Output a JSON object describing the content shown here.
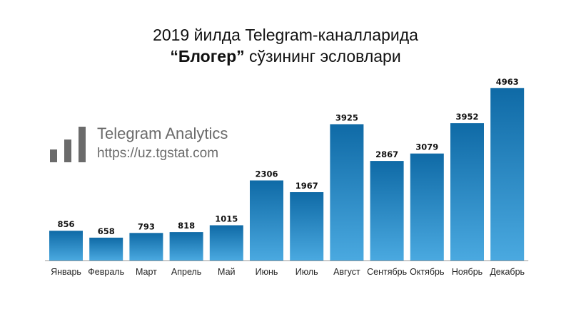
{
  "title": {
    "line1": "2019 йилда Telegram-каналларида",
    "line2_bold": "“Блогер”",
    "line2_rest": " сўзининг эсловлари"
  },
  "watermark": {
    "name": "Telegram Analytics",
    "url": "https://uz.tgstat.com"
  },
  "colors": {
    "bar_top": "#0f6aa6",
    "bar_bottom": "#4aa9e0",
    "axis": "#999999",
    "watermark": "#6b6b6b"
  },
  "chart_data": {
    "type": "bar",
    "title": "2019 йилда Telegram-каналларида “Блогер” сўзининг эсловлари",
    "categories": [
      "Январь",
      "Февраль",
      "Март",
      "Апрель",
      "Май",
      "Июнь",
      "Июль",
      "Август",
      "Сентябрь",
      "Октябрь",
      "Ноябрь",
      "Декабрь"
    ],
    "values": [
      856,
      658,
      793,
      818,
      1015,
      2306,
      1967,
      3925,
      2867,
      3079,
      3952,
      4963
    ],
    "xlabel": "",
    "ylabel": "",
    "ylim": [
      0,
      5000
    ],
    "data_labels": true,
    "grid": false,
    "legend": "none"
  }
}
